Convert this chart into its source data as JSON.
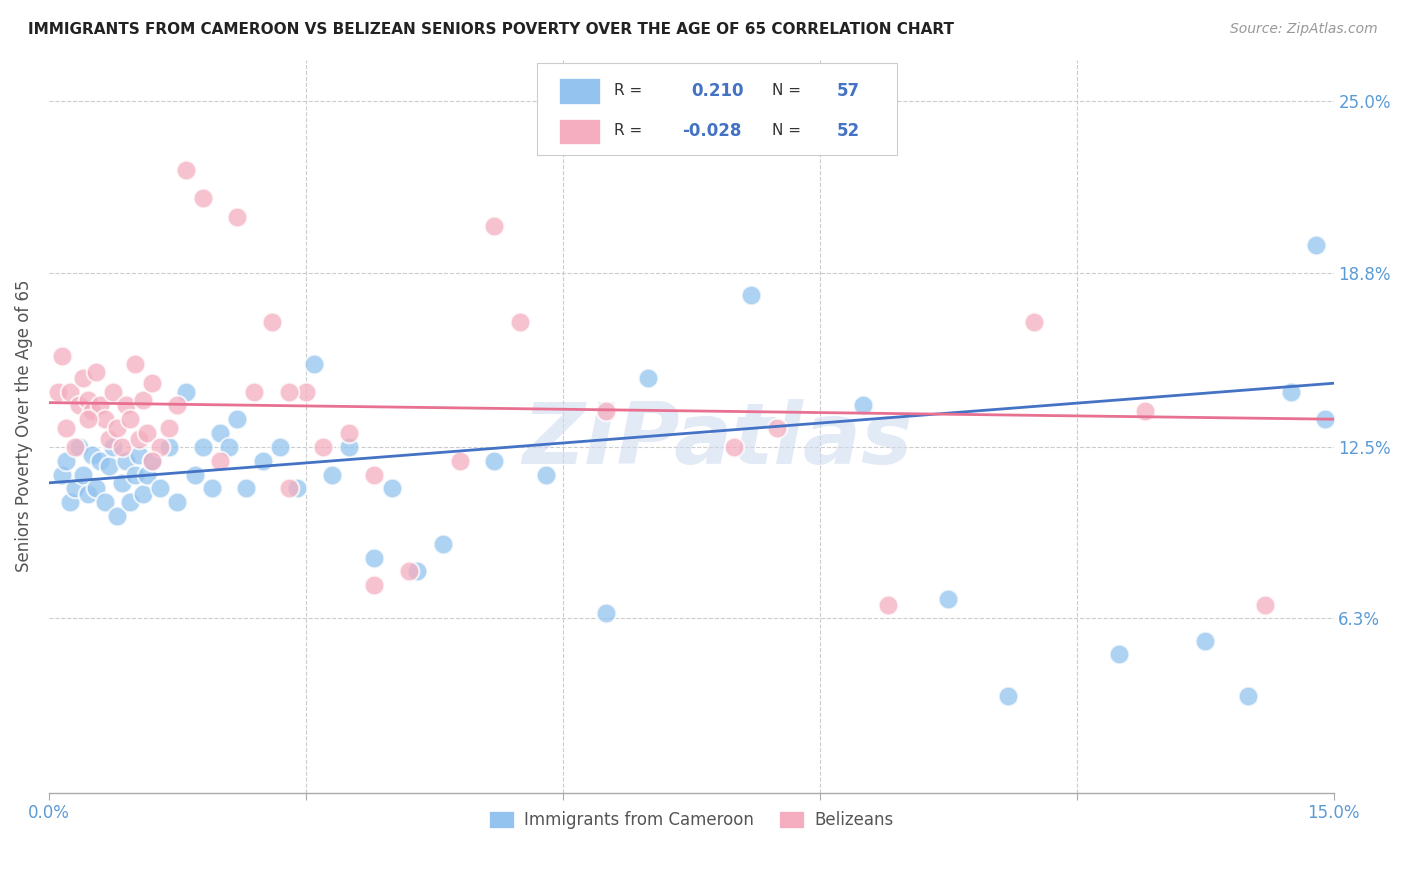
{
  "title": "IMMIGRANTS FROM CAMEROON VS BELIZEAN SENIORS POVERTY OVER THE AGE OF 65 CORRELATION CHART",
  "source": "Source: ZipAtlas.com",
  "ylabel": "Seniors Poverty Over the Age of 65",
  "xmin": 0.0,
  "xmax": 15.0,
  "ymin": 0.0,
  "ymax": 26.5,
  "yticks": [
    6.3,
    12.5,
    18.8,
    25.0
  ],
  "ytick_labels": [
    "6.3%",
    "12.5%",
    "18.8%",
    "25.0%"
  ],
  "series1_label": "Immigrants from Cameroon",
  "series2_label": "Belizeans",
  "color_blue": "#93C3EE",
  "color_pink": "#F4AEBF",
  "color_blue_line": "#4472C4",
  "color_pink_line": "#E87090",
  "background": "#FFFFFF",
  "watermark": "ZIPatlas",
  "blue_points_x": [
    0.15,
    0.2,
    0.25,
    0.3,
    0.35,
    0.4,
    0.45,
    0.5,
    0.55,
    0.6,
    0.65,
    0.7,
    0.75,
    0.8,
    0.85,
    0.9,
    0.95,
    1.0,
    1.05,
    1.1,
    1.15,
    1.2,
    1.3,
    1.4,
    1.5,
    1.6,
    1.7,
    1.8,
    1.9,
    2.0,
    2.1,
    2.2,
    2.3,
    2.5,
    2.7,
    2.9,
    3.1,
    3.3,
    3.5,
    3.8,
    4.0,
    4.3,
    4.6,
    5.2,
    5.8,
    6.5,
    7.0,
    8.2,
    9.5,
    10.5,
    11.2,
    12.5,
    13.5,
    14.0,
    14.5,
    14.8,
    14.9
  ],
  "blue_points_y": [
    11.5,
    12.0,
    10.5,
    11.0,
    12.5,
    11.5,
    10.8,
    12.2,
    11.0,
    12.0,
    10.5,
    11.8,
    12.5,
    10.0,
    11.2,
    12.0,
    10.5,
    11.5,
    12.2,
    10.8,
    11.5,
    12.0,
    11.0,
    12.5,
    10.5,
    14.5,
    11.5,
    12.5,
    11.0,
    13.0,
    12.5,
    13.5,
    11.0,
    12.0,
    12.5,
    11.0,
    15.5,
    11.5,
    12.5,
    8.5,
    11.0,
    8.0,
    9.0,
    12.0,
    11.5,
    6.5,
    15.0,
    18.0,
    14.0,
    7.0,
    3.5,
    5.0,
    5.5,
    3.5,
    14.5,
    19.8,
    13.5
  ],
  "pink_points_x": [
    0.1,
    0.15,
    0.2,
    0.25,
    0.3,
    0.35,
    0.4,
    0.45,
    0.5,
    0.55,
    0.6,
    0.65,
    0.7,
    0.75,
    0.8,
    0.85,
    0.9,
    0.95,
    1.0,
    1.05,
    1.1,
    1.15,
    1.2,
    1.3,
    1.4,
    1.5,
    1.6,
    1.8,
    2.0,
    2.2,
    2.4,
    2.6,
    2.8,
    3.0,
    3.2,
    3.5,
    3.8,
    4.2,
    4.8,
    5.5,
    6.5,
    8.5,
    9.8,
    11.5,
    12.8,
    14.2,
    0.45,
    1.2,
    2.8,
    3.8,
    5.2,
    8.0
  ],
  "pink_points_y": [
    14.5,
    15.8,
    13.2,
    14.5,
    12.5,
    14.0,
    15.0,
    14.2,
    13.8,
    15.2,
    14.0,
    13.5,
    12.8,
    14.5,
    13.2,
    12.5,
    14.0,
    13.5,
    15.5,
    12.8,
    14.2,
    13.0,
    14.8,
    12.5,
    13.2,
    14.0,
    22.5,
    21.5,
    12.0,
    20.8,
    14.5,
    17.0,
    11.0,
    14.5,
    12.5,
    13.0,
    7.5,
    8.0,
    12.0,
    17.0,
    13.8,
    13.2,
    6.8,
    17.0,
    13.8,
    6.8,
    13.5,
    12.0,
    14.5,
    11.5,
    20.5,
    12.5
  ],
  "blue_line_y_start": 11.2,
  "blue_line_y_end": 14.8,
  "pink_line_y_start": 14.1,
  "pink_line_y_end": 13.5
}
